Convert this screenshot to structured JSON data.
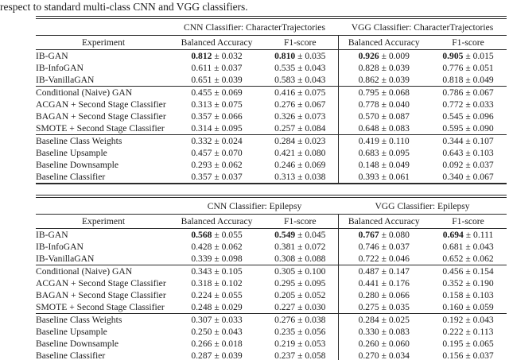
{
  "caption": "respect to standard multi-class CNN and VGG classifiers.",
  "pm": "±",
  "tables": [
    {
      "cnn_header": "CNN Classifier: CharacterTrajectories",
      "vgg_header": "VGG Classifier: CharacterTrajectories",
      "columns": [
        "Experiment",
        "Balanced Accuracy",
        "F1-score",
        "Balanced Accuracy",
        "F1-score"
      ],
      "sections": [
        [
          {
            "name": "IB-GAN",
            "bold": true,
            "cells": [
              [
                "0.812",
                "0.032"
              ],
              [
                "0.810",
                "0.035"
              ],
              [
                "0.926",
                "0.009"
              ],
              [
                "0.905",
                "0.015"
              ]
            ]
          },
          {
            "name": "IB-InfoGAN",
            "bold": false,
            "cells": [
              [
                "0.611",
                "0.037"
              ],
              [
                "0.535",
                "0.043"
              ],
              [
                "0.828",
                "0.039"
              ],
              [
                "0.776",
                "0.051"
              ]
            ]
          },
          {
            "name": "IB-VanillaGAN",
            "bold": false,
            "cells": [
              [
                "0.651",
                "0.039"
              ],
              [
                "0.583",
                "0.043"
              ],
              [
                "0.862",
                "0.039"
              ],
              [
                "0.818",
                "0.049"
              ]
            ]
          }
        ],
        [
          {
            "name": "Conditional (Naive) GAN",
            "bold": false,
            "cells": [
              [
                "0.455",
                "0.069"
              ],
              [
                "0.416",
                "0.075"
              ],
              [
                "0.795",
                "0.068"
              ],
              [
                "0.786",
                "0.067"
              ]
            ]
          },
          {
            "name": "ACGAN + Second Stage Classifier",
            "bold": false,
            "cells": [
              [
                "0.313",
                "0.075"
              ],
              [
                "0.276",
                "0.067"
              ],
              [
                "0.778",
                "0.040"
              ],
              [
                "0.772",
                "0.033"
              ]
            ]
          },
          {
            "name": "BAGAN + Second Stage Classifier",
            "bold": false,
            "cells": [
              [
                "0.357",
                "0.066"
              ],
              [
                "0.326",
                "0.073"
              ],
              [
                "0.570",
                "0.087"
              ],
              [
                "0.545",
                "0.096"
              ]
            ]
          },
          {
            "name": "SMOTE + Second Stage Classifier",
            "bold": false,
            "cells": [
              [
                "0.314",
                "0.095"
              ],
              [
                "0.257",
                "0.084"
              ],
              [
                "0.648",
                "0.083"
              ],
              [
                "0.595",
                "0.090"
              ]
            ]
          }
        ],
        [
          {
            "name": "Baseline Class Weights",
            "bold": false,
            "cells": [
              [
                "0.332",
                "0.024"
              ],
              [
                "0.284",
                "0.023"
              ],
              [
                "0.419",
                "0.110"
              ],
              [
                "0.344",
                "0.107"
              ]
            ]
          },
          {
            "name": "Baseline Upsample",
            "bold": false,
            "cells": [
              [
                "0.457",
                "0.070"
              ],
              [
                "0.421",
                "0.080"
              ],
              [
                "0.683",
                "0.095"
              ],
              [
                "0.643",
                "0.103"
              ]
            ]
          },
          {
            "name": "Baseline Downsample",
            "bold": false,
            "cells": [
              [
                "0.293",
                "0.062"
              ],
              [
                "0.246",
                "0.069"
              ],
              [
                "0.148",
                "0.049"
              ],
              [
                "0.092",
                "0.037"
              ]
            ]
          },
          {
            "name": "Baseline Classifier",
            "bold": false,
            "cells": [
              [
                "0.357",
                "0.037"
              ],
              [
                "0.313",
                "0.038"
              ],
              [
                "0.393",
                "0.061"
              ],
              [
                "0.340",
                "0.067"
              ]
            ]
          }
        ]
      ]
    },
    {
      "cnn_header": "CNN Classifier: Epilepsy",
      "vgg_header": "VGG Classifier: Epilepsy",
      "columns": [
        "Experiment",
        "Balanced Accuracy",
        "F1-score",
        "Balanced Accuracy",
        "F1-score"
      ],
      "sections": [
        [
          {
            "name": "IB-GAN",
            "bold": true,
            "cells": [
              [
                "0.568",
                "0.055"
              ],
              [
                "0.549",
                "0.045"
              ],
              [
                "0.767",
                "0.080"
              ],
              [
                "0.694",
                "0.111"
              ]
            ]
          },
          {
            "name": "IB-InfoGAN",
            "bold": false,
            "cells": [
              [
                "0.428",
                "0.062"
              ],
              [
                "0.381",
                "0.072"
              ],
              [
                "0.746",
                "0.037"
              ],
              [
                "0.681",
                "0.043"
              ]
            ]
          },
          {
            "name": "IB-VanillaGAN",
            "bold": false,
            "cells": [
              [
                "0.339",
                "0.098"
              ],
              [
                "0.308",
                "0.088"
              ],
              [
                "0.722",
                "0.046"
              ],
              [
                "0.652",
                "0.062"
              ]
            ]
          }
        ],
        [
          {
            "name": "Conditional (Naive) GAN",
            "bold": false,
            "cells": [
              [
                "0.343",
                "0.105"
              ],
              [
                "0.305",
                "0.100"
              ],
              [
                "0.487",
                "0.147"
              ],
              [
                "0.456",
                "0.154"
              ]
            ]
          },
          {
            "name": "ACGAN + Second Stage Classifier",
            "bold": false,
            "cells": [
              [
                "0.318",
                "0.102"
              ],
              [
                "0.295",
                "0.095"
              ],
              [
                "0.441",
                "0.176"
              ],
              [
                "0.352",
                "0.190"
              ]
            ]
          },
          {
            "name": "BAGAN + Second Stage Classifier",
            "bold": false,
            "cells": [
              [
                "0.224",
                "0.055"
              ],
              [
                "0.205",
                "0.052"
              ],
              [
                "0.280",
                "0.066"
              ],
              [
                "0.158",
                "0.103"
              ]
            ]
          },
          {
            "name": "SMOTE + Second Stage Classifier",
            "bold": false,
            "cells": [
              [
                "0.248",
                "0.029"
              ],
              [
                "0.227",
                "0.030"
              ],
              [
                "0.275",
                "0.035"
              ],
              [
                "0.160",
                "0.059"
              ]
            ]
          }
        ],
        [
          {
            "name": "Baseline Class Weights",
            "bold": false,
            "cells": [
              [
                "0.307",
                "0.033"
              ],
              [
                "0.276",
                "0.038"
              ],
              [
                "0.284",
                "0.025"
              ],
              [
                "0.192",
                "0.043"
              ]
            ]
          },
          {
            "name": "Baseline Upsample",
            "bold": false,
            "cells": [
              [
                "0.250",
                "0.043"
              ],
              [
                "0.235",
                "0.056"
              ],
              [
                "0.330",
                "0.083"
              ],
              [
                "0.222",
                "0.113"
              ]
            ]
          },
          {
            "name": "Baseline Downsample",
            "bold": false,
            "cells": [
              [
                "0.266",
                "0.018"
              ],
              [
                "0.219",
                "0.053"
              ],
              [
                "0.260",
                "0.060"
              ],
              [
                "0.195",
                "0.065"
              ]
            ]
          },
          {
            "name": "Baseline Classifier",
            "bold": false,
            "cells": [
              [
                "0.287",
                "0.039"
              ],
              [
                "0.237",
                "0.058"
              ],
              [
                "0.270",
                "0.034"
              ],
              [
                "0.156",
                "0.037"
              ]
            ]
          }
        ]
      ]
    }
  ]
}
